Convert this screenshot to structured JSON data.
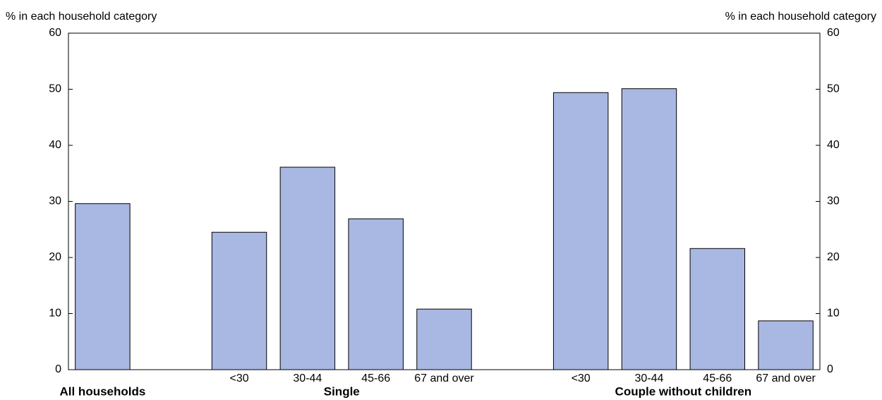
{
  "chart_data": {
    "type": "bar",
    "y_label": "% in each household category",
    "y2_label": "% in each household category",
    "categories": [
      null,
      null,
      "<30",
      "30-44",
      "45-66",
      "67 and over",
      null,
      "<30",
      "30-44",
      "45-66",
      "67 and over"
    ],
    "values": [
      29.6,
      null,
      24.5,
      36.1,
      26.9,
      10.8,
      null,
      49.4,
      50.1,
      21.6,
      8.7
    ],
    "groups": [
      {
        "name": "All households",
        "span": [
          0,
          0
        ]
      },
      {
        "name": "Single",
        "span": [
          2,
          5
        ]
      },
      {
        "name": "Couple without children",
        "span": [
          7,
          10
        ]
      }
    ],
    "color": "#a9b8e3",
    "ylim": [
      0,
      60
    ],
    "yticks": [
      0,
      10,
      20,
      30,
      40,
      50,
      60
    ],
    "y2lim": [
      0,
      60
    ],
    "y2ticks": [
      0,
      10,
      20,
      30,
      40,
      50,
      60
    ]
  }
}
